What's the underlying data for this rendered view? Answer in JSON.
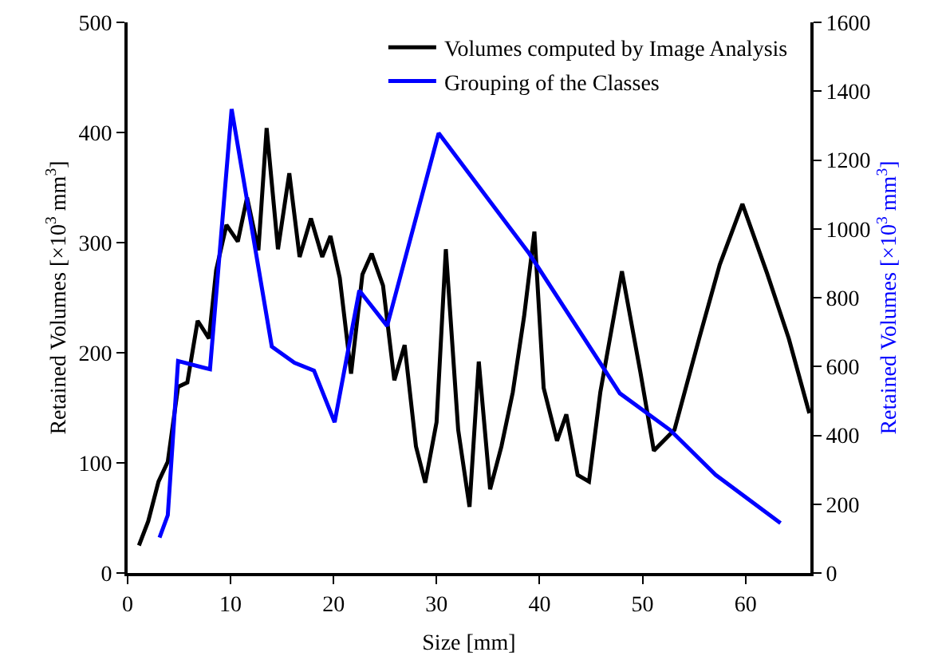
{
  "chart_data": {
    "type": "line",
    "xlabel": "Size [mm]",
    "ylabel": "Retained Volumes [×10$^{3}$ mm$^{3}$]",
    "y2label": "Retained Volumes [×10$^{3}$ mm$^{3}$]",
    "xlim": [
      0,
      66.3
    ],
    "xticks": [
      0,
      10,
      20,
      30,
      40,
      50,
      60
    ],
    "ylim": [
      0,
      500
    ],
    "yticks": [
      0,
      100,
      200,
      300,
      400,
      500
    ],
    "y2lim": [
      0,
      1600
    ],
    "y2ticks": [
      0,
      200,
      400,
      600,
      800,
      1000,
      1200,
      1400,
      1600
    ],
    "grid": false,
    "legend": "top right",
    "marker": "none",
    "line_style": "solid",
    "series": [
      {
        "name": "Volumes computed by Image Analysis",
        "color": "#000000",
        "x": [
          1.1,
          2.0,
          3.0,
          3.9,
          4.9,
          5.8,
          6.8,
          7.9,
          8.6,
          9.6,
          10.7,
          11.6,
          12.7,
          13.5,
          14.6,
          15.7,
          16.7,
          17.8,
          18.9,
          19.7,
          20.6,
          21.7,
          22.8,
          23.7,
          24.8,
          25.9,
          26.9,
          28.0,
          28.9,
          30.0,
          30.9,
          32.1,
          33.2,
          34.1,
          35.2,
          36.3,
          37.4,
          38.5,
          39.5,
          40.4,
          41.7,
          42.6,
          43.7,
          44.8,
          45.9,
          48.0,
          49.8,
          51.1,
          53.1,
          55.5,
          57.5,
          59.7,
          62.1,
          64.2,
          66.2
        ],
        "values": [
          25,
          47,
          83,
          101,
          169,
          173,
          229,
          213,
          275,
          316,
          301,
          341,
          293,
          404,
          294,
          363,
          287,
          322,
          287,
          306,
          268,
          181,
          271,
          290,
          261,
          175,
          207,
          115,
          82,
          137,
          294,
          130,
          60,
          192,
          76,
          115,
          164,
          233,
          310,
          168,
          120,
          144,
          89,
          83,
          164,
          274,
          182,
          111,
          130,
          213,
          280,
          335,
          272,
          213,
          145
        ]
      },
      {
        "name": "Grouping of the Classes",
        "color": "#0000ff",
        "axis": "y2",
        "x": [
          3.1,
          3.9,
          4.9,
          8.0,
          10.1,
          14.0,
          16.2,
          18.1,
          20.1,
          22.5,
          25.2,
          30.2,
          39.0,
          47.8,
          52.7,
          57.1,
          63.4
        ],
        "values": [
          103,
          168,
          616,
          592,
          1348,
          658,
          611,
          588,
          438,
          821,
          718,
          1278,
          928,
          522,
          415,
          285,
          145
        ]
      }
    ]
  }
}
